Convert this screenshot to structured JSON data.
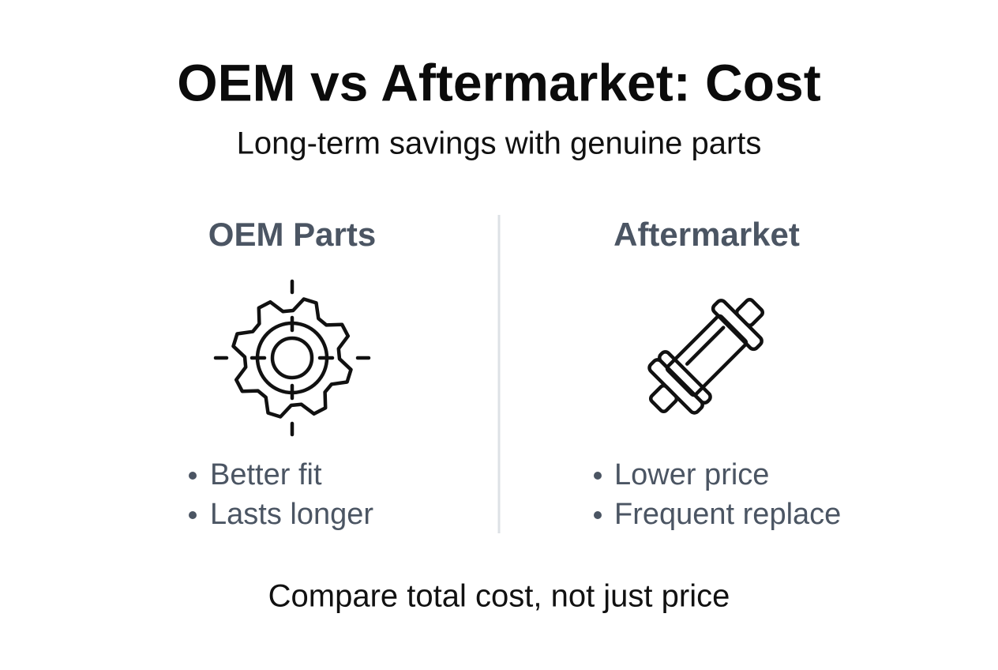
{
  "header": {
    "title": "OEM vs Aftermarket: Cost",
    "subtitle": "Long-term savings with genuine parts"
  },
  "columns": [
    {
      "heading": "OEM Parts",
      "bullets": [
        "Better fit",
        "Lasts longer"
      ]
    },
    {
      "heading": "Aftermarket",
      "bullets": [
        "Lower price",
        "Frequent replace"
      ]
    }
  ],
  "footer": "Compare total cost, not just price"
}
